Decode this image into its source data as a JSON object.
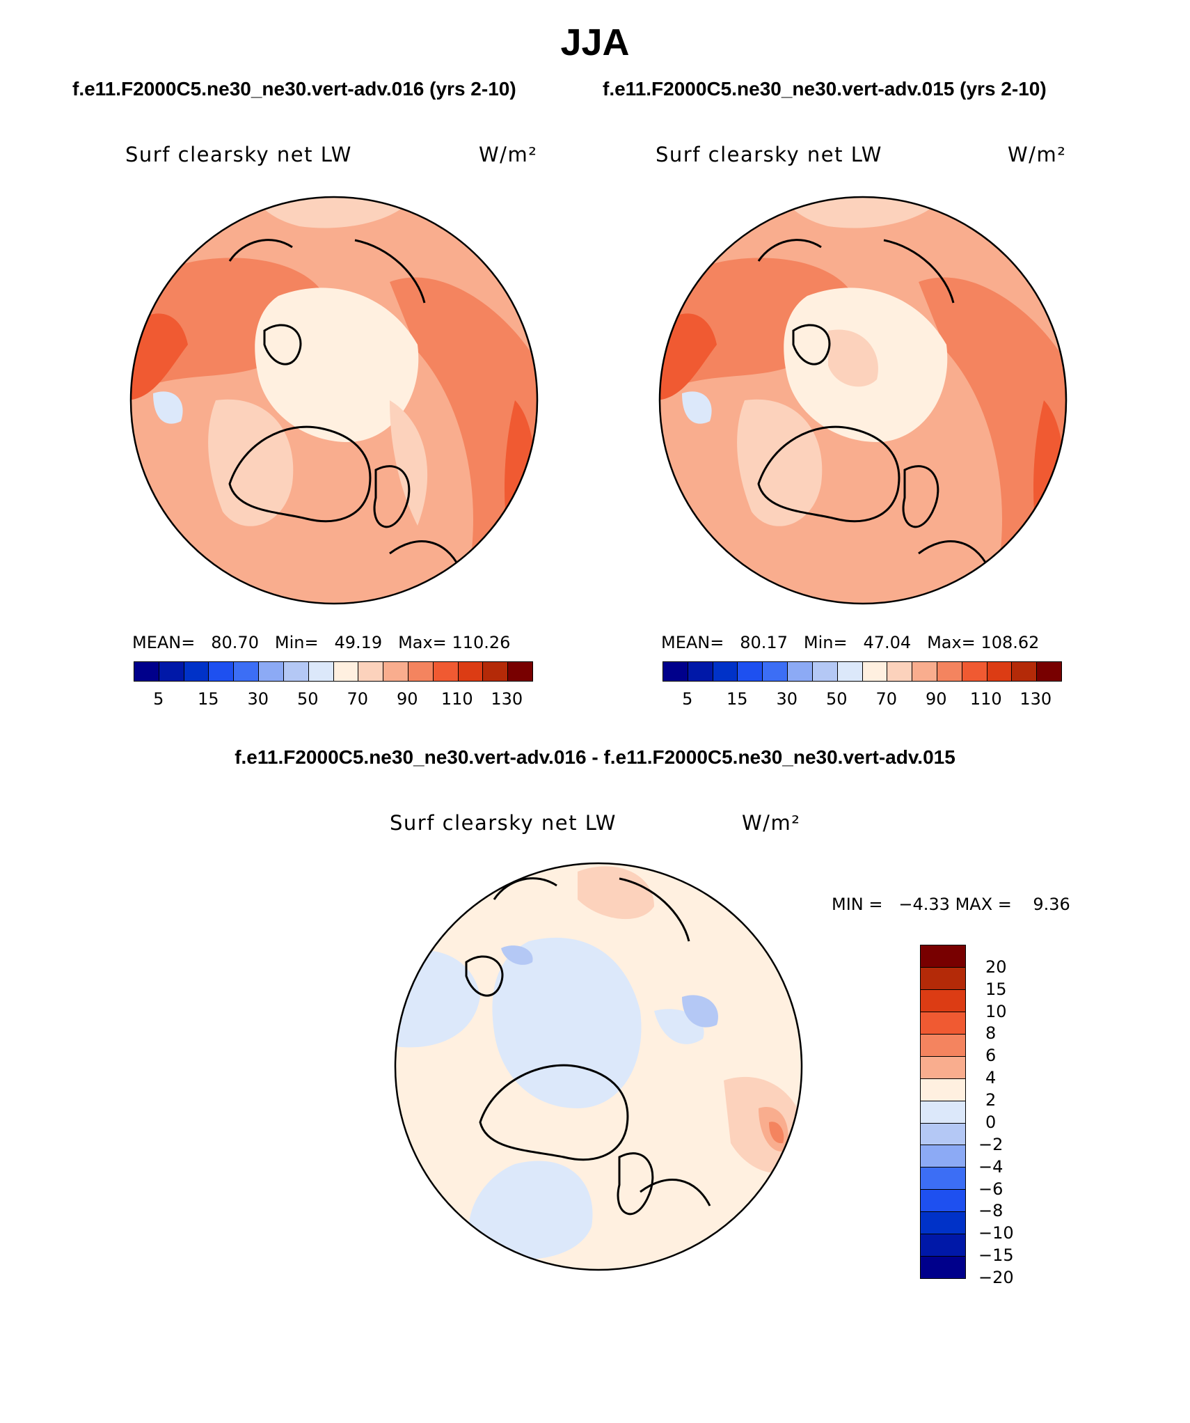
{
  "figure": {
    "season": "JJA",
    "case_left": "f.e11.F2000C5.ne30_ne30.vert-adv.016 (yrs 2-10)",
    "case_right": "f.e11.F2000C5.ne30_ne30.vert-adv.015 (yrs 2-10)",
    "diff_title": "f.e11.F2000C5.ne30_ne30.vert-adv.016 - f.e11.F2000C5.ne30_ne30.vert-adv.015"
  },
  "panels": [
    {
      "variable": "Surf clearsky net LW",
      "units": "W/m²",
      "mean_label": "MEAN=",
      "mean": "80.70",
      "min_label": "Min=",
      "min": "49.19",
      "max_label": "Max=",
      "max": "110.26"
    },
    {
      "variable": "Surf clearsky net LW",
      "units": "W/m²",
      "mean_label": "MEAN=",
      "mean": "80.17",
      "min_label": "Min=",
      "min": "47.04",
      "max_label": "Max=",
      "max": "108.62"
    }
  ],
  "diff_panel": {
    "variable": "Surf clearsky net LW",
    "units": "W/m²",
    "min_label": "MIN =",
    "min": "−4.33",
    "max_label": "MAX =",
    "max": "9.36"
  },
  "main_colorbar": {
    "colors": [
      "#00008b",
      "#0018a8",
      "#0032c8",
      "#1e50f0",
      "#3c6ef5",
      "#8caaf5",
      "#b4c8f5",
      "#dce8fa",
      "#fff0e0",
      "#fcd2bc",
      "#f9ad8e",
      "#f4845f",
      "#f05a32",
      "#dc3c14",
      "#b42a08",
      "#780000"
    ],
    "tick_labels": [
      "5",
      "15",
      "30",
      "50",
      "70",
      "90",
      "110",
      "130"
    ]
  },
  "diff_colorbar": {
    "colors": [
      "#780000",
      "#b42a08",
      "#dc3c14",
      "#f05a32",
      "#f4845f",
      "#f9ad8e",
      "#fff0e0",
      "#dce8fa",
      "#b4c8f5",
      "#8caaf5",
      "#3c6ef5",
      "#1e50f0",
      "#0032c8",
      "#0018a8",
      "#00008b"
    ],
    "tick_labels": [
      "20",
      "15",
      "10",
      "8",
      "6",
      "4",
      "2",
      "0",
      "−2",
      "−4",
      "−6",
      "−8",
      "−10",
      "−15",
      "−20"
    ]
  }
}
